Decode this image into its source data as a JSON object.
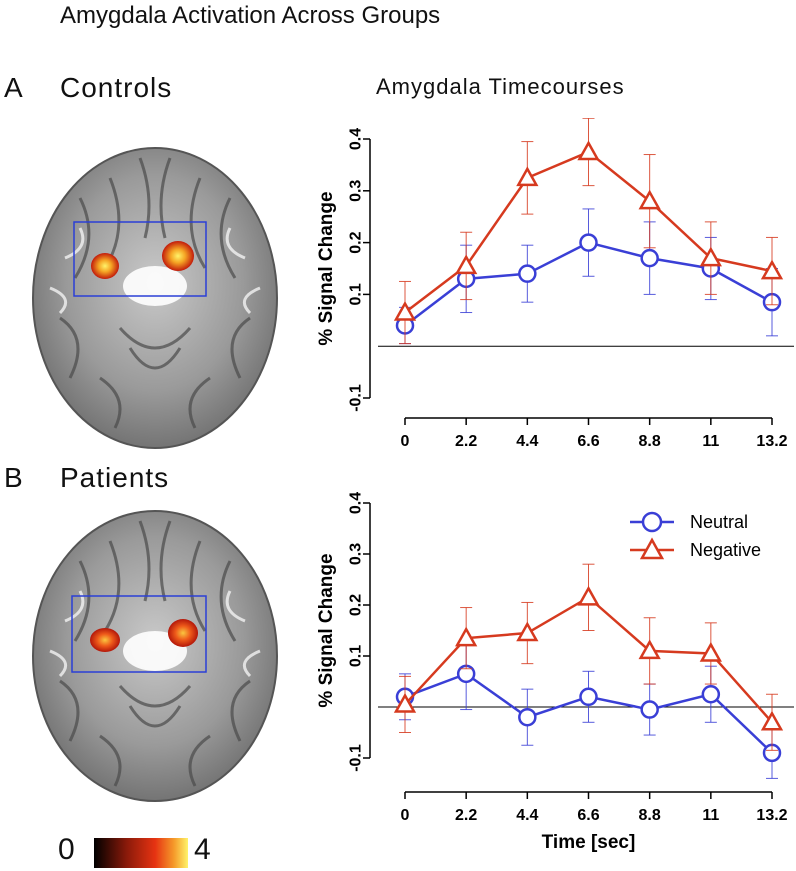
{
  "figure_title": "Amygdala Activation Across Groups",
  "panel_a": {
    "letter": "A",
    "group": "Controls"
  },
  "panel_b": {
    "letter": "B",
    "group": "Patients"
  },
  "timecourse_title": "Amygdala Timecourses",
  "colorbar": {
    "min_label": "0",
    "max_label": "4"
  },
  "colors": {
    "neutral": "#3a3fd6",
    "negative": "#d63a1f",
    "roi_box": "#2b3fd6"
  },
  "chart_data": [
    {
      "type": "line",
      "panel": "A",
      "x": [
        0,
        2.2,
        4.4,
        6.6,
        8.8,
        11,
        13.2
      ],
      "x_tick_labels": [
        "0",
        "2.2",
        "4.4",
        "6.6",
        "8.8",
        "11",
        "13.2"
      ],
      "xlabel": "",
      "ylabel": "% Signal Change",
      "ylim": [
        -0.1,
        0.4
      ],
      "y_ticks": [
        -0.1,
        0.1,
        0.2,
        0.3,
        0.4
      ],
      "y_tick_labels": [
        "-0.1",
        "0.1",
        "0.2",
        "0.3",
        "0.4"
      ],
      "baseline": 0,
      "legend": null,
      "series": [
        {
          "name": "Neutral",
          "marker": "circle",
          "values": [
            0.04,
            0.13,
            0.14,
            0.2,
            0.17,
            0.15,
            0.085
          ],
          "error": [
            0.035,
            0.065,
            0.055,
            0.065,
            0.07,
            0.06,
            0.065
          ]
        },
        {
          "name": "Negative",
          "marker": "triangle",
          "values": [
            0.065,
            0.155,
            0.325,
            0.375,
            0.28,
            0.17,
            0.145
          ],
          "error": [
            0.06,
            0.065,
            0.07,
            0.065,
            0.09,
            0.07,
            0.065
          ]
        }
      ]
    },
    {
      "type": "line",
      "panel": "B",
      "x": [
        0,
        2.2,
        4.4,
        6.6,
        8.8,
        11,
        13.2
      ],
      "x_tick_labels": [
        "0",
        "2.2",
        "4.4",
        "6.6",
        "8.8",
        "11",
        "13.2"
      ],
      "xlabel": "Time [sec]",
      "ylabel": "% Signal Change",
      "ylim": [
        -0.1,
        0.4
      ],
      "y_ticks": [
        -0.1,
        0.1,
        0.2,
        0.3,
        0.4
      ],
      "y_tick_labels": [
        "-0.1",
        "0.1",
        "0.2",
        "0.3",
        "0.4"
      ],
      "baseline": 0,
      "legend": "top-right",
      "series": [
        {
          "name": "Neutral",
          "marker": "circle",
          "values": [
            0.02,
            0.065,
            -0.02,
            0.02,
            -0.005,
            0.025,
            -0.09
          ],
          "error": [
            0.045,
            0.07,
            0.055,
            0.05,
            0.05,
            0.055,
            0.05
          ]
        },
        {
          "name": "Negative",
          "marker": "triangle",
          "values": [
            0.005,
            0.135,
            0.145,
            0.215,
            0.11,
            0.105,
            -0.03
          ],
          "error": [
            0.055,
            0.06,
            0.06,
            0.065,
            0.065,
            0.06,
            0.055
          ]
        }
      ]
    }
  ]
}
